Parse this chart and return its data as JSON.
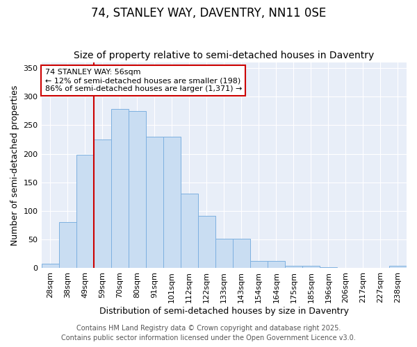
{
  "title": "74, STANLEY WAY, DAVENTRY, NN11 0SE",
  "subtitle": "Size of property relative to semi-detached houses in Daventry",
  "xlabel": "Distribution of semi-detached houses by size in Daventry",
  "ylabel": "Number of semi-detached properties",
  "categories": [
    "28sqm",
    "38sqm",
    "49sqm",
    "59sqm",
    "70sqm",
    "80sqm",
    "91sqm",
    "101sqm",
    "112sqm",
    "122sqm",
    "133sqm",
    "143sqm",
    "154sqm",
    "164sqm",
    "175sqm",
    "185sqm",
    "196sqm",
    "206sqm",
    "217sqm",
    "227sqm",
    "238sqm"
  ],
  "values": [
    8,
    80,
    198,
    225,
    278,
    275,
    230,
    230,
    130,
    92,
    52,
    52,
    13,
    13,
    4,
    4,
    2,
    1,
    1,
    1,
    4
  ],
  "bar_color": "#c9ddf2",
  "bar_edge_color": "#7db0e0",
  "red_line_x": 2.5,
  "annotation_title": "74 STANLEY WAY: 56sqm",
  "annotation_line1": "← 12% of semi-detached houses are smaller (198)",
  "annotation_line2": "86% of semi-detached houses are larger (1,371) →",
  "annotation_box_facecolor": "#ffffff",
  "annotation_box_edgecolor": "#cc0000",
  "red_line_color": "#cc0000",
  "ylim": [
    0,
    360
  ],
  "yticks": [
    0,
    50,
    100,
    150,
    200,
    250,
    300,
    350
  ],
  "footer1": "Contains HM Land Registry data © Crown copyright and database right 2025.",
  "footer2": "Contains public sector information licensed under the Open Government Licence v3.0.",
  "fig_bg_color": "#ffffff",
  "plot_bg_color": "#e8eef8",
  "grid_color": "#ffffff",
  "title_fontsize": 12,
  "subtitle_fontsize": 10,
  "axis_label_fontsize": 9,
  "tick_fontsize": 8,
  "annotation_fontsize": 8,
  "footer_fontsize": 7
}
